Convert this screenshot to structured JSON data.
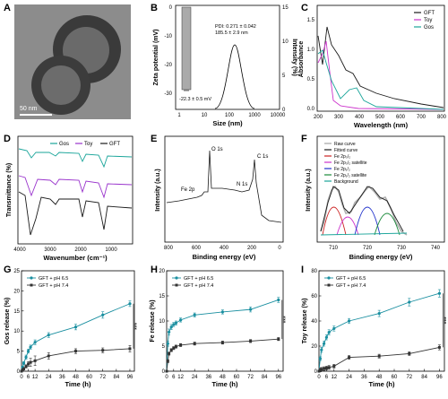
{
  "panels": {
    "A": {
      "letter": "A",
      "scalebar": "50 nm"
    },
    "B": {
      "letter": "B",
      "ylabel_left": "Zeta potential (mV)",
      "ylabel_right": "Intensity (%)",
      "xlabel": "Size (nm)",
      "zeta_label": "-22.3 ± 0.5 mV",
      "pdi": "PDI: 0.271 ± 0.042",
      "size": "185.5 ± 2.9 nm",
      "left_ticks": [
        "0",
        "-10",
        "-20",
        "-30"
      ],
      "right_ticks": [
        "15",
        "10",
        "5",
        "0"
      ],
      "x_ticks": [
        "1",
        "10",
        "100",
        "1000",
        "10000"
      ]
    },
    "C": {
      "letter": "C",
      "ylabel": "Absorbance",
      "xlabel": "Wavelength (nm)",
      "x_ticks": [
        "200",
        "300",
        "400",
        "500",
        "600",
        "700",
        "800"
      ],
      "y_ticks": [
        "0.0",
        "0.5",
        "1.0",
        "1.5"
      ],
      "legend": [
        {
          "name": "GFT",
          "color": "#1a1a1a"
        },
        {
          "name": "Toy",
          "color": "#cc33cc"
        },
        {
          "name": "Gos",
          "color": "#1aa59a"
        }
      ]
    },
    "D": {
      "letter": "D",
      "ylabel": "Transmittance (%)",
      "xlabel": "Wavenumber (cm⁻¹)",
      "x_ticks": [
        "4000",
        "3000",
        "2000",
        "1000"
      ],
      "legend": [
        {
          "name": "Gos",
          "color": "#1aa59a"
        },
        {
          "name": "Toy",
          "color": "#9933cc"
        },
        {
          "name": "GFT",
          "color": "#1a1a1a"
        }
      ]
    },
    "E": {
      "letter": "E",
      "ylabel": "Intensity (a.u.)",
      "xlabel": "Binding energy (eV)",
      "x_ticks": [
        "800",
        "600",
        "400",
        "200",
        "0"
      ],
      "labels": {
        "o1s": "O 1s",
        "c1s": "C 1s",
        "fe2p": "Fe 2p",
        "n1s": "N 1s"
      }
    },
    "F": {
      "letter": "F",
      "ylabel": "Intensity (a.u.)",
      "xlabel": "Binding energy (eV)",
      "x_ticks": [
        "710",
        "720",
        "730",
        "740"
      ],
      "legend": [
        {
          "name": "Raw curve",
          "color": "#b0b0b0"
        },
        {
          "name": "Fitted curve",
          "color": "#1a1a1a"
        },
        {
          "name": "Fe 2p₃/₂",
          "color": "#cc2222"
        },
        {
          "name": "Fe 2p₃/₂ satellite",
          "color": "#cc33cc"
        },
        {
          "name": "Fe 2p₁/₂",
          "color": "#2233cc"
        },
        {
          "name": "Fe 2p₁/₂ satellite",
          "color": "#1a8a3a"
        },
        {
          "name": "Background",
          "color": "#1aa59a"
        }
      ]
    }
  },
  "chart_data": [
    {
      "panel": "G",
      "type": "line",
      "ylabel": "Gos release (%)",
      "xlabel": "Time (h)",
      "xlim": [
        0,
        100
      ],
      "ylim": [
        0,
        25
      ],
      "x_ticks": [
        0,
        6,
        12,
        24,
        36,
        48,
        60,
        72,
        84,
        96
      ],
      "y_ticks": [
        0,
        5,
        10,
        15,
        20,
        25
      ],
      "x": [
        0,
        1,
        2,
        4,
        6,
        8,
        12,
        24,
        48,
        72,
        96
      ],
      "series": [
        {
          "name": "GFT + pH 6.5",
          "color": "#1a8fa0",
          "marker": "circle",
          "values": [
            0,
            1.0,
            2.0,
            3.5,
            5.0,
            6.0,
            7.2,
            9.0,
            11.0,
            14.0,
            16.8
          ],
          "err": [
            0,
            0.3,
            0.4,
            0.5,
            0.5,
            0.5,
            0.6,
            0.6,
            0.7,
            0.8,
            0.7
          ]
        },
        {
          "name": "GFT + pH 7.4",
          "color": "#333333",
          "marker": "square",
          "values": [
            0,
            0.3,
            0.6,
            1.2,
            1.8,
            2.2,
            2.6,
            3.8,
            5.0,
            5.2,
            5.6
          ],
          "err": [
            0,
            0.2,
            0.3,
            0.4,
            0.6,
            1.0,
            1.2,
            0.8,
            0.6,
            0.6,
            0.8
          ]
        }
      ],
      "significance": "***"
    },
    {
      "panel": "H",
      "type": "line",
      "ylabel": "Fe release (%)",
      "xlabel": "Time (h)",
      "xlim": [
        0,
        100
      ],
      "ylim": [
        0,
        20
      ],
      "x_ticks": [
        0,
        6,
        12,
        24,
        36,
        48,
        60,
        72,
        84,
        96
      ],
      "y_ticks": [
        0,
        5,
        10,
        15,
        20
      ],
      "x": [
        0,
        1,
        2,
        4,
        6,
        8,
        12,
        24,
        48,
        72,
        96
      ],
      "series": [
        {
          "name": "GFT + pH 6.5",
          "color": "#1a8fa0",
          "marker": "circle",
          "values": [
            0,
            5.5,
            7.8,
            8.8,
            9.3,
            9.6,
            10.2,
            11.2,
            11.8,
            12.3,
            14.2
          ],
          "err": [
            0,
            0.5,
            0.6,
            0.5,
            0.4,
            0.4,
            0.4,
            0.4,
            0.4,
            0.5,
            0.5
          ]
        },
        {
          "name": "GFT + pH 7.4",
          "color": "#333333",
          "marker": "square",
          "values": [
            0,
            2.0,
            3.5,
            4.2,
            4.6,
            4.9,
            5.2,
            5.5,
            5.7,
            6.0,
            6.4
          ],
          "err": [
            0,
            0.3,
            0.3,
            0.3,
            0.3,
            0.3,
            0.3,
            0.3,
            0.3,
            0.3,
            0.3
          ]
        }
      ],
      "significance": "***"
    },
    {
      "panel": "I",
      "type": "line",
      "ylabel": "Toy release (%)",
      "xlabel": "Time (h)",
      "xlim": [
        0,
        100
      ],
      "ylim": [
        0,
        80
      ],
      "x_ticks": [
        0,
        6,
        12,
        24,
        36,
        48,
        60,
        72,
        84,
        96
      ],
      "y_ticks": [
        0,
        20,
        40,
        60,
        80
      ],
      "x": [
        0,
        1,
        2,
        4,
        6,
        8,
        12,
        24,
        48,
        72,
        96
      ],
      "series": [
        {
          "name": "GFT + pH 6.5",
          "color": "#1a8fa0",
          "marker": "circle",
          "values": [
            0,
            10,
            17,
            22,
            27,
            31,
            34,
            40,
            46,
            55,
            62
          ],
          "err": [
            0,
            1.5,
            2,
            2,
            2,
            2,
            2,
            2,
            2.5,
            3,
            3
          ]
        },
        {
          "name": "GFT + pH 7.4",
          "color": "#333333",
          "marker": "square",
          "values": [
            0,
            1,
            1.5,
            2,
            2.5,
            3,
            4,
            11,
            12,
            14,
            19
          ],
          "err": [
            0,
            1.5,
            1.5,
            1.5,
            1.5,
            1.5,
            1.5,
            1.5,
            1.5,
            1.5,
            2
          ]
        }
      ],
      "significance": "***"
    }
  ]
}
